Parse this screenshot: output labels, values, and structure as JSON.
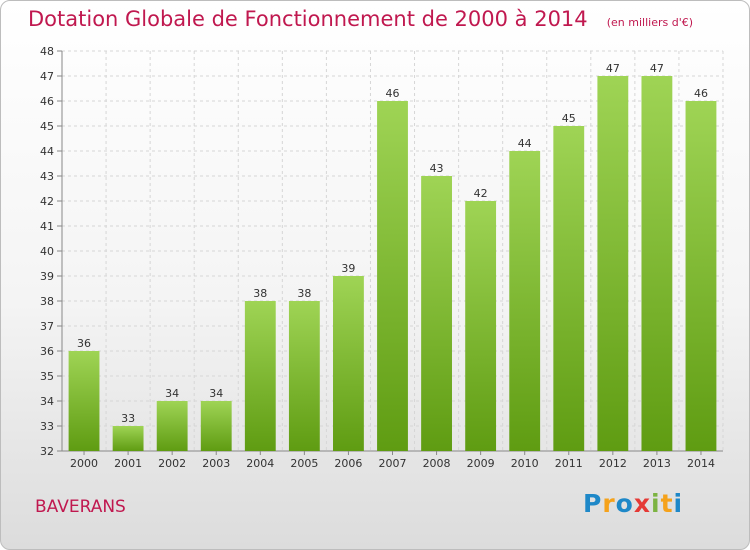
{
  "header": {
    "title": "Dotation Globale de Fonctionnement de 2000 à 2014",
    "subtitle": "(en milliers d'€)"
  },
  "footer": {
    "commune": "BAVERANS",
    "logo_letters": [
      "P",
      "r",
      "o",
      "x",
      "i",
      "t",
      "i"
    ],
    "logo_colors": [
      "#1e88c8",
      "#f5a21b",
      "#1e88c8",
      "#e53935",
      "#7cb342",
      "#f5a21b",
      "#1e88c8"
    ]
  },
  "chart_data": {
    "type": "bar",
    "categories": [
      "2000",
      "2001",
      "2002",
      "2003",
      "2004",
      "2005",
      "2006",
      "2007",
      "2008",
      "2009",
      "2010",
      "2011",
      "2012",
      "2013",
      "2014"
    ],
    "values": [
      36,
      33,
      34,
      34,
      38,
      38,
      39,
      46,
      43,
      42,
      44,
      45,
      47,
      47,
      46
    ],
    "title": "Dotation Globale de Fonctionnement de 2000 à 2014",
    "subtitle": "(en milliers d'€)",
    "ylim": [
      32,
      48
    ],
    "yticks": [
      32,
      33,
      34,
      35,
      36,
      37,
      38,
      39,
      40,
      41,
      42,
      43,
      44,
      45,
      46,
      47,
      48
    ],
    "grid": true,
    "bar_color_light": "#9fd455",
    "bar_color_dark": "#5f9c12"
  }
}
